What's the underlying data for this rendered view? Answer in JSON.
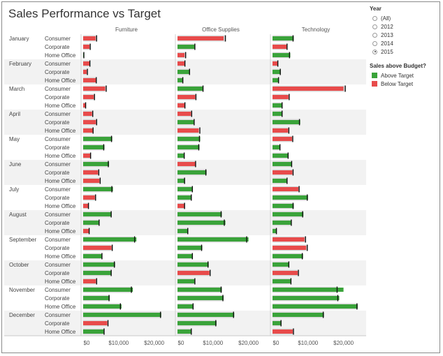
{
  "title": "Sales Performance vs Target",
  "filter": {
    "label": "Year",
    "options": [
      "(All)",
      "2012",
      "2013",
      "2014",
      "2015"
    ],
    "selected": "2015"
  },
  "legend": {
    "title": "Sales above Budget?",
    "items": [
      {
        "label": "Above Target",
        "color": "#3aa33a"
      },
      {
        "label": "Below Target",
        "color": "#e84b4b"
      }
    ]
  },
  "chart_data": {
    "type": "bar",
    "orientation": "horizontal",
    "columns": [
      "Furniture",
      "Office Supplies",
      "Technology"
    ],
    "months": [
      "January",
      "February",
      "March",
      "April",
      "May",
      "June",
      "July",
      "August",
      "September",
      "October",
      "November",
      "December"
    ],
    "segments": [
      "Consumer",
      "Corporate",
      "Home Office"
    ],
    "x_ticks": [
      "$0",
      "$10,000",
      "$20,000"
    ],
    "xlim": [
      0,
      25000
    ],
    "colors": {
      "above": "#3aa33a",
      "below": "#e84b4b",
      "target": "#d9d9d9",
      "band": "#f2f2f2"
    },
    "values": {
      "Furniture": [
        [
          [
            3500,
            3800
          ],
          [
            1800,
            2000
          ],
          [
            200,
            200
          ]
        ],
        [
          [
            1800,
            1900
          ],
          [
            1000,
            1200
          ],
          [
            3600,
            3700
          ]
        ],
        [
          [
            6200,
            6500
          ],
          [
            3000,
            3200
          ],
          [
            600,
            700
          ]
        ],
        [
          [
            2500,
            2700
          ],
          [
            3600,
            3800
          ],
          [
            2700,
            2800
          ]
        ],
        [
          [
            8200,
            8000
          ],
          [
            6000,
            5800
          ],
          [
            2000,
            2100
          ]
        ],
        [
          [
            7300,
            7100
          ],
          [
            4200,
            4400
          ],
          [
            4600,
            4800
          ]
        ],
        [
          [
            8400,
            8100
          ],
          [
            3300,
            3500
          ],
          [
            1400,
            1500
          ]
        ],
        [
          [
            8000,
            7900
          ],
          [
            4600,
            4500
          ],
          [
            1600,
            1700
          ]
        ],
        [
          [
            15000,
            14500
          ],
          [
            8000,
            8200
          ],
          [
            5400,
            5300
          ]
        ],
        [
          [
            9000,
            8800
          ],
          [
            8000,
            7900
          ],
          [
            3600,
            3800
          ]
        ],
        [
          [
            14000,
            13600
          ],
          [
            7500,
            7300
          ],
          [
            10800,
            10500
          ]
        ],
        [
          [
            22000,
            21800
          ],
          [
            6800,
            7000
          ],
          [
            6000,
            5900
          ]
        ]
      ],
      "Office Supplies": [
        [
          [
            13000,
            13500
          ],
          [
            5000,
            4900
          ],
          [
            2000,
            2300
          ]
        ],
        [
          [
            2000,
            2100
          ],
          [
            3500,
            3400
          ],
          [
            1600,
            1500
          ]
        ],
        [
          [
            7300,
            7200
          ],
          [
            5000,
            5200
          ],
          [
            2000,
            2100
          ]
        ],
        [
          [
            3800,
            4000
          ],
          [
            4800,
            4700
          ],
          [
            6000,
            6300
          ]
        ],
        [
          [
            6400,
            6200
          ],
          [
            6200,
            6000
          ],
          [
            2000,
            1900
          ]
        ],
        [
          [
            5000,
            5100
          ],
          [
            8200,
            8000
          ],
          [
            2100,
            2000
          ]
        ],
        [
          [
            4300,
            4200
          ],
          [
            4000,
            3900
          ],
          [
            1900,
            2000
          ]
        ],
        [
          [
            12500,
            12300
          ],
          [
            13500,
            13200
          ],
          [
            3000,
            2900
          ]
        ],
        [
          [
            20000,
            19500
          ],
          [
            7000,
            6800
          ],
          [
            4300,
            4200
          ]
        ],
        [
          [
            8800,
            8600
          ],
          [
            9000,
            9200
          ],
          [
            5000,
            4900
          ]
        ],
        [
          [
            12500,
            12300
          ],
          [
            13000,
            12800
          ],
          [
            4500,
            4400
          ]
        ],
        [
          [
            16000,
            15800
          ],
          [
            11000,
            10800
          ],
          [
            4000,
            3900
          ]
        ]
      ],
      "Technology": [
        [
          [
            6000,
            5800
          ],
          [
            4000,
            4100
          ],
          [
            5000,
            4800
          ]
        ],
        [
          [
            1400,
            1500
          ],
          [
            2300,
            2200
          ],
          [
            1800,
            1700
          ]
        ],
        [
          [
            20000,
            20500
          ],
          [
            4500,
            4700
          ],
          [
            2800,
            2700
          ]
        ],
        [
          [
            2800,
            2700
          ],
          [
            7800,
            7600
          ],
          [
            4400,
            4600
          ]
        ],
        [
          [
            5500,
            5700
          ],
          [
            2200,
            2100
          ],
          [
            4500,
            4400
          ]
        ],
        [
          [
            5500,
            5400
          ],
          [
            5600,
            5800
          ],
          [
            4200,
            4100
          ]
        ],
        [
          [
            7300,
            7500
          ],
          [
            10000,
            9800
          ],
          [
            6000,
            5800
          ]
        ],
        [
          [
            8700,
            8500
          ],
          [
            5400,
            5300
          ],
          [
            1200,
            1100
          ]
        ],
        [
          [
            9000,
            9300
          ],
          [
            9500,
            9800
          ],
          [
            8600,
            8400
          ]
        ],
        [
          [
            4700,
            4600
          ],
          [
            7100,
            7300
          ],
          [
            5300,
            5200
          ]
        ],
        [
          [
            20000,
            18200
          ],
          [
            18800,
            18400
          ],
          [
            24000,
            23800
          ]
        ],
        [
          [
            14500,
            14300
          ],
          [
            2500,
            2400
          ],
          [
            5700,
            5900
          ]
        ]
      ]
    }
  }
}
